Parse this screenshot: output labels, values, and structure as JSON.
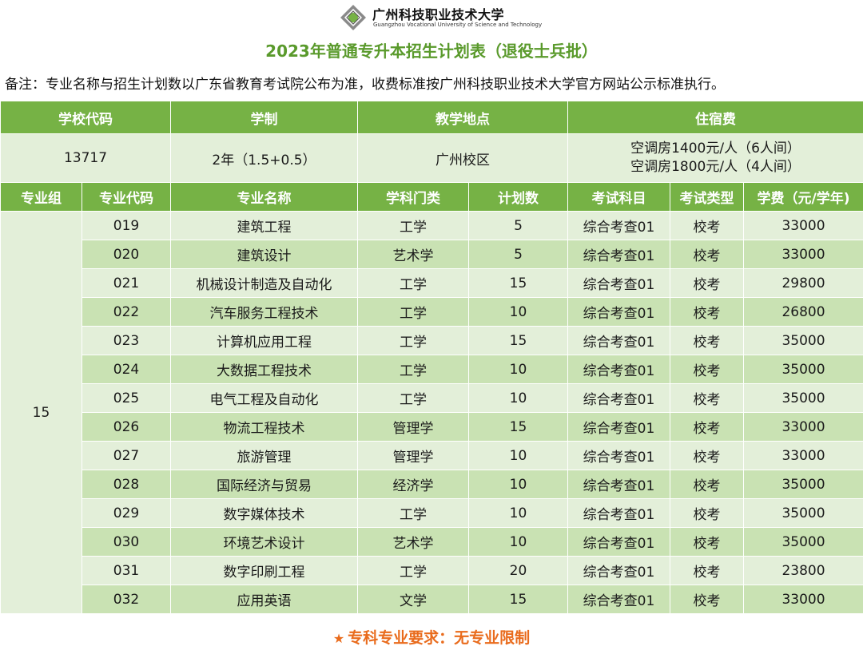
{
  "logo": {
    "name": "广州科技职业技术大学",
    "english": "Guangzhou Vocational University of Science and Technology"
  },
  "title": "2023年普通专升本招生计划表（退役士兵批）",
  "note": "备注：专业名称与招生计划数以广东省教育考试院公布为准，收费标准按广州科技职业技术大学官方网站公示标准执行。",
  "school_header": {
    "code_label": "学校代码",
    "system_label": "学制",
    "location_label": "教学地点",
    "dorm_label": "住宿费"
  },
  "school_info": {
    "code": "13717",
    "system": "2年（1.5+0.5）",
    "location": "广州校区",
    "dorm_line1": "空调房1400元/人（6人间）",
    "dorm_line2": "空调房1800元/人（4人间）"
  },
  "columns": [
    "专业组",
    "专业代码",
    "专业名称",
    "学科门类",
    "计划数",
    "考试科目",
    "考试类型",
    "学费（元/学年)"
  ],
  "group": "15",
  "rows": [
    {
      "code": "019",
      "name": "建筑工程",
      "category": "工学",
      "plan": "5",
      "subject": "综合考查01",
      "type": "校考",
      "fee": "33000"
    },
    {
      "code": "020",
      "name": "建筑设计",
      "category": "艺术学",
      "plan": "5",
      "subject": "综合考查01",
      "type": "校考",
      "fee": "33000"
    },
    {
      "code": "021",
      "name": "机械设计制造及自动化",
      "category": "工学",
      "plan": "15",
      "subject": "综合考查01",
      "type": "校考",
      "fee": "29800"
    },
    {
      "code": "022",
      "name": "汽车服务工程技术",
      "category": "工学",
      "plan": "10",
      "subject": "综合考查01",
      "type": "校考",
      "fee": "26800"
    },
    {
      "code": "023",
      "name": "计算机应用工程",
      "category": "工学",
      "plan": "15",
      "subject": "综合考查01",
      "type": "校考",
      "fee": "35000"
    },
    {
      "code": "024",
      "name": "大数据工程技术",
      "category": "工学",
      "plan": "10",
      "subject": "综合考查01",
      "type": "校考",
      "fee": "35000"
    },
    {
      "code": "025",
      "name": "电气工程及自动化",
      "category": "工学",
      "plan": "10",
      "subject": "综合考查01",
      "type": "校考",
      "fee": "35000"
    },
    {
      "code": "026",
      "name": "物流工程技术",
      "category": "管理学",
      "plan": "15",
      "subject": "综合考查01",
      "type": "校考",
      "fee": "33000"
    },
    {
      "code": "027",
      "name": "旅游管理",
      "category": "管理学",
      "plan": "10",
      "subject": "综合考查01",
      "type": "校考",
      "fee": "33000"
    },
    {
      "code": "028",
      "name": "国际经济与贸易",
      "category": "经济学",
      "plan": "10",
      "subject": "综合考查01",
      "type": "校考",
      "fee": "35000"
    },
    {
      "code": "029",
      "name": "数字媒体技术",
      "category": "工学",
      "plan": "10",
      "subject": "综合考查01",
      "type": "校考",
      "fee": "35000"
    },
    {
      "code": "030",
      "name": "环境艺术设计",
      "category": "艺术学",
      "plan": "10",
      "subject": "综合考查01",
      "type": "校考",
      "fee": "35000"
    },
    {
      "code": "031",
      "name": "数字印刷工程",
      "category": "工学",
      "plan": "20",
      "subject": "综合考查01",
      "type": "校考",
      "fee": "23800"
    },
    {
      "code": "032",
      "name": "应用英语",
      "category": "文学",
      "plan": "15",
      "subject": "综合考查01",
      "type": "校考",
      "fee": "33000"
    }
  ],
  "footer": {
    "star": "★",
    "text": "专科专业要求：无专业限制"
  },
  "colors": {
    "header_green": "#76b245",
    "title_green": "#5a9a2c",
    "row_light": "#e3efd9",
    "row_dark": "#c9e2b3",
    "footer_orange": "#e96b1c"
  }
}
